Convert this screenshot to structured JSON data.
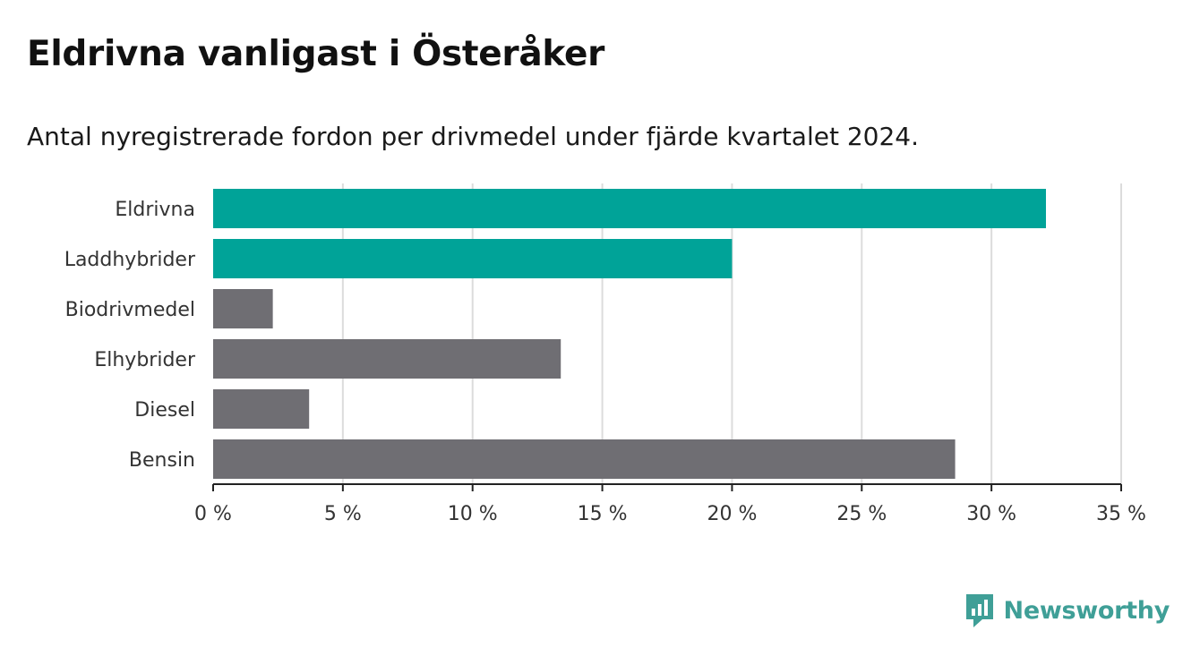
{
  "title": "Eldrivna vanligast i Österåker",
  "subtitle": "Antal nyregistrerade fordon per drivmedel under fjärde kvartalet 2024.",
  "brand": {
    "name": "Newsworthy",
    "icon": "newsworthy-logo-icon",
    "color": "#3f9f97"
  },
  "colors": {
    "highlight": "#00a398",
    "default": "#6f6e73",
    "grid": "#dcdcdc",
    "axis": "#222222"
  },
  "chart_data": {
    "type": "bar",
    "orientation": "horizontal",
    "categories": [
      "Eldrivna",
      "Laddhybrider",
      "Biodrivmedel",
      "Elhybrider",
      "Diesel",
      "Bensin"
    ],
    "values": [
      32.1,
      20.0,
      2.3,
      13.4,
      3.7,
      28.6
    ],
    "highlighted": [
      true,
      true,
      false,
      false,
      false,
      false
    ],
    "xlim": [
      0,
      35
    ],
    "xticks": [
      0,
      5,
      10,
      15,
      20,
      25,
      30,
      35
    ],
    "xtick_labels": [
      "0 %",
      "5 %",
      "10 %",
      "15 %",
      "20 %",
      "25 %",
      "30 %",
      "35 %"
    ],
    "xlabel": "",
    "ylabel": "",
    "grid": true
  }
}
